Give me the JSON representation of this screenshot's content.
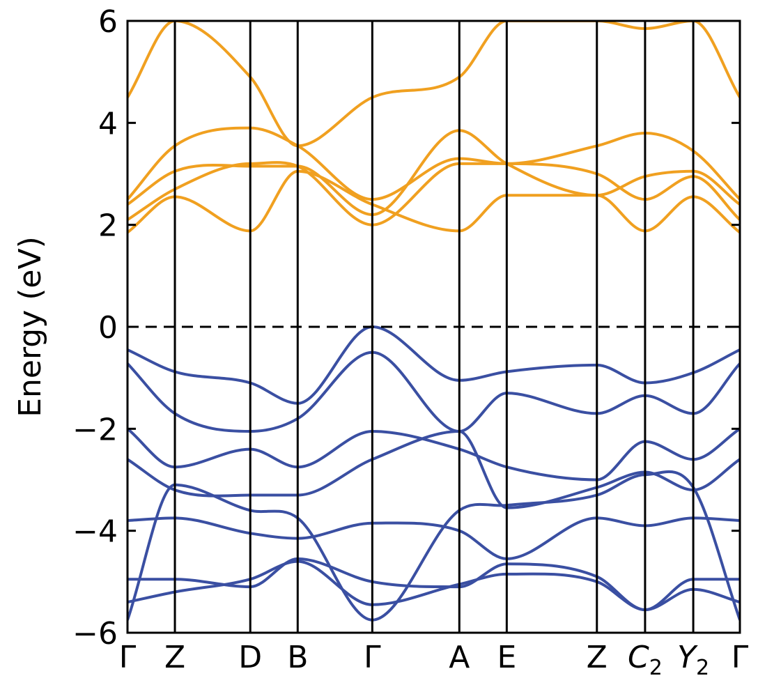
{
  "chart_data": {
    "type": "line",
    "title": "",
    "ylabel": "Energy (eV)",
    "xlabel": "",
    "ylim": [
      -6,
      6
    ],
    "yticks": [
      -6,
      -4,
      -2,
      0,
      2,
      4,
      6
    ],
    "ytick_labels": [
      "−6",
      "−4",
      "−2",
      "0",
      "2",
      "4",
      "6"
    ],
    "fermi_level": 0,
    "grid": false,
    "legend": "none",
    "colors": {
      "conduction": "#f0a020",
      "valence": "#3a4fa2",
      "axes": "#000000"
    },
    "kpath": [
      {
        "label": "Γ",
        "sub": "",
        "italic": false,
        "x": 0.0
      },
      {
        "label": "Z",
        "sub": "",
        "italic": false,
        "x": 0.61
      },
      {
        "label": "D",
        "sub": "",
        "italic": false,
        "x": 1.58
      },
      {
        "label": "B",
        "sub": "",
        "italic": false,
        "x": 2.19
      },
      {
        "label": "Γ",
        "sub": "",
        "italic": false,
        "x": 3.15
      },
      {
        "label": "A",
        "sub": "",
        "italic": false,
        "x": 4.27
      },
      {
        "label": "E",
        "sub": "",
        "italic": false,
        "x": 4.88
      },
      {
        "label": "Z",
        "sub": "",
        "italic": false,
        "x": 6.04
      },
      {
        "label": "C",
        "sub": "2",
        "italic": true,
        "x": 6.66
      },
      {
        "label": "Y",
        "sub": "2",
        "italic": true,
        "x": 7.28
      },
      {
        "label": "Γ",
        "sub": "",
        "italic": false,
        "x": 7.88
      }
    ],
    "series": [
      {
        "kind": "conduction",
        "values": [
          1.85,
          2.55,
          1.88,
          3.05,
          2.4,
          1.88,
          2.58,
          2.58,
          1.88,
          2.55,
          1.85
        ]
      },
      {
        "kind": "conduction",
        "values": [
          2.1,
          2.7,
          3.2,
          3.15,
          2.0,
          3.2,
          3.2,
          3.0,
          2.5,
          2.95,
          2.1
        ]
      },
      {
        "kind": "conduction",
        "values": [
          2.4,
          3.05,
          3.15,
          3.15,
          2.2,
          3.85,
          3.2,
          2.58,
          2.95,
          3.05,
          2.4
        ]
      },
      {
        "kind": "conduction",
        "values": [
          2.5,
          3.55,
          3.9,
          3.55,
          2.5,
          3.3,
          3.2,
          3.55,
          3.8,
          3.45,
          2.5
        ]
      },
      {
        "kind": "conduction",
        "values": [
          4.5,
          6.0,
          4.9,
          3.55,
          4.5,
          4.9,
          6.0,
          6.0,
          5.85,
          6.0,
          4.5
        ]
      },
      {
        "kind": "valence",
        "values": [
          -0.45,
          -0.88,
          -1.1,
          -1.5,
          0.0,
          -1.05,
          -0.88,
          -0.75,
          -1.1,
          -0.9,
          -0.45
        ]
      },
      {
        "kind": "valence",
        "values": [
          -0.72,
          -1.7,
          -2.05,
          -1.8,
          -0.5,
          -2.05,
          -1.3,
          -1.7,
          -1.35,
          -1.7,
          -0.72
        ]
      },
      {
        "kind": "valence",
        "values": [
          -2.0,
          -2.75,
          -2.4,
          -2.75,
          -2.05,
          -2.4,
          -2.75,
          -3.0,
          -2.25,
          -2.6,
          -2.0
        ]
      },
      {
        "kind": "valence",
        "values": [
          -2.6,
          -3.2,
          -3.3,
          -3.3,
          -2.6,
          -2.05,
          -3.55,
          -3.15,
          -2.85,
          -3.2,
          -2.6
        ]
      },
      {
        "kind": "valence",
        "values": [
          -3.8,
          -3.75,
          -4.05,
          -4.15,
          -3.85,
          -4.0,
          -4.55,
          -3.75,
          -3.9,
          -3.75,
          -3.8
        ]
      },
      {
        "kind": "valence",
        "values": [
          -4.95,
          -4.95,
          -5.1,
          -4.55,
          -5.0,
          -5.1,
          -4.65,
          -4.9,
          -5.55,
          -4.95,
          -4.95
        ]
      },
      {
        "kind": "valence",
        "values": [
          -5.4,
          -5.2,
          -4.95,
          -4.6,
          -5.45,
          -5.05,
          -4.85,
          -5.0,
          -5.55,
          -5.15,
          -5.4
        ]
      },
      {
        "kind": "valence",
        "values": [
          -5.75,
          -3.1,
          -3.6,
          -3.75,
          -5.75,
          -3.6,
          -3.5,
          -3.3,
          -2.9,
          -3.15,
          -5.75
        ]
      }
    ]
  }
}
